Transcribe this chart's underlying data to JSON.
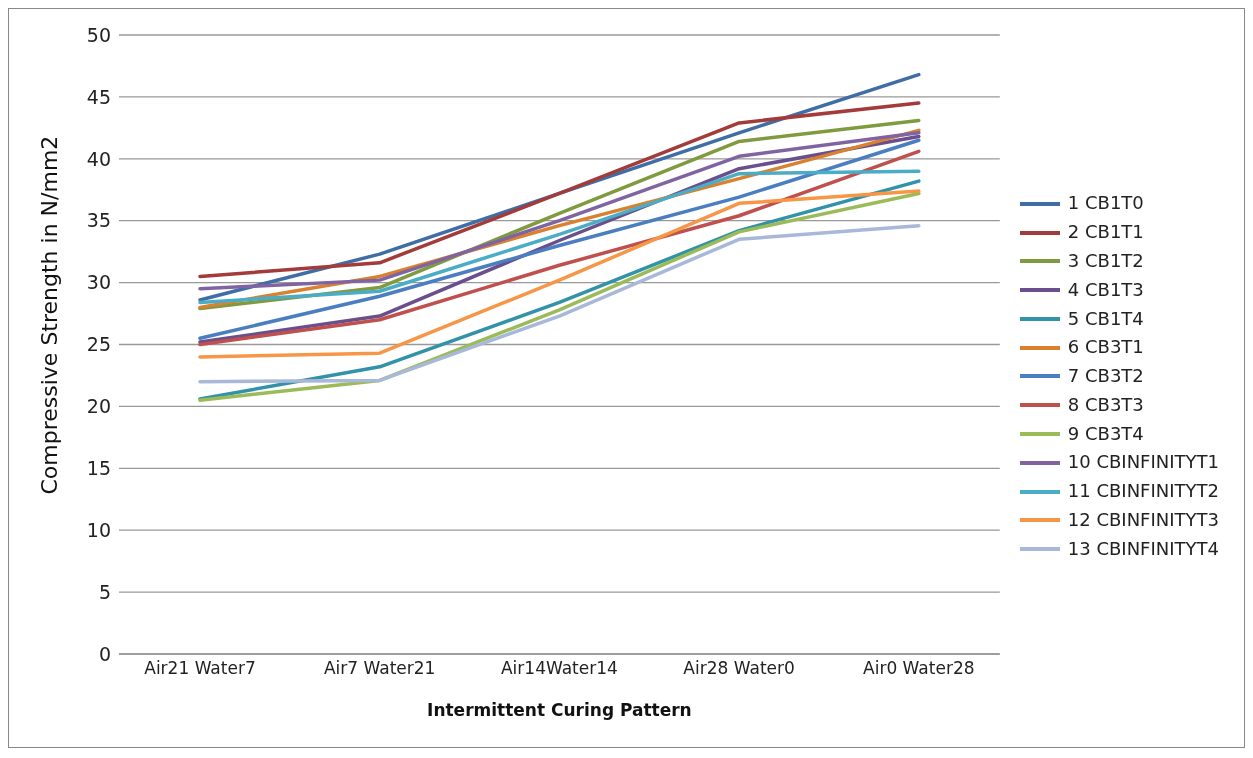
{
  "chart_data": {
    "type": "line",
    "xlabel": "Intermittent Curing Pattern",
    "ylabel": "Compressive Strength in N/mm2",
    "categories": [
      "Air21 Water7",
      "Air7 Water21",
      "Air14Water14",
      "Air28 Water0",
      "Air0 Water28"
    ],
    "ylim": [
      0,
      50
    ],
    "yticks": [
      0,
      5,
      10,
      15,
      20,
      25,
      30,
      35,
      40,
      45,
      50
    ],
    "grid": "y",
    "legend": "right",
    "marker": "none",
    "line_style": "solid",
    "series": [
      {
        "name": "1 CB1T0",
        "color": "#3f6ea6",
        "values": [
          28.6,
          32.3,
          37.2,
          42.1,
          46.8
        ]
      },
      {
        "name": "2 CB1T1",
        "color": "#a33b3a",
        "values": [
          30.5,
          31.6,
          37.2,
          42.9,
          44.5
        ]
      },
      {
        "name": "3 CB1T2",
        "color": "#7f9a3f",
        "values": [
          27.9,
          29.6,
          35.6,
          41.4,
          43.1
        ]
      },
      {
        "name": "4 CB1T3",
        "color": "#694f8c",
        "values": [
          25.2,
          27.3,
          33.4,
          39.2,
          41.8
        ]
      },
      {
        "name": "5 CB1T4",
        "color": "#3192a8",
        "values": [
          20.6,
          23.2,
          28.4,
          34.2,
          38.2
        ]
      },
      {
        "name": "6 CB3T1",
        "color": "#d9812f",
        "values": [
          28.0,
          30.5,
          34.6,
          38.4,
          42.3
        ]
      },
      {
        "name": "7 CB3T2",
        "color": "#4a7ec0",
        "values": [
          25.5,
          28.9,
          33.0,
          36.9,
          41.5
        ]
      },
      {
        "name": "8 CB3T3",
        "color": "#c0504d",
        "values": [
          25.0,
          27.0,
          31.4,
          35.4,
          40.6
        ]
      },
      {
        "name": "9 CB3T4",
        "color": "#9bbb59",
        "values": [
          20.5,
          22.1,
          27.8,
          34.1,
          37.2
        ]
      },
      {
        "name": "10 CBINFINITYT1",
        "color": "#8064a2",
        "values": [
          29.5,
          30.2,
          35.0,
          40.2,
          42.1
        ]
      },
      {
        "name": "11 CBINFINITYT2",
        "color": "#4bacc6",
        "values": [
          28.4,
          29.3,
          33.9,
          38.8,
          39.0
        ]
      },
      {
        "name": "12 CBINFINITYT3",
        "color": "#f79646",
        "values": [
          24.0,
          24.3,
          30.2,
          36.4,
          37.4
        ]
      },
      {
        "name": "13 CBINFINITYT4",
        "color": "#a8b8d8",
        "values": [
          22.0,
          22.1,
          27.3,
          33.5,
          34.6
        ]
      }
    ]
  }
}
